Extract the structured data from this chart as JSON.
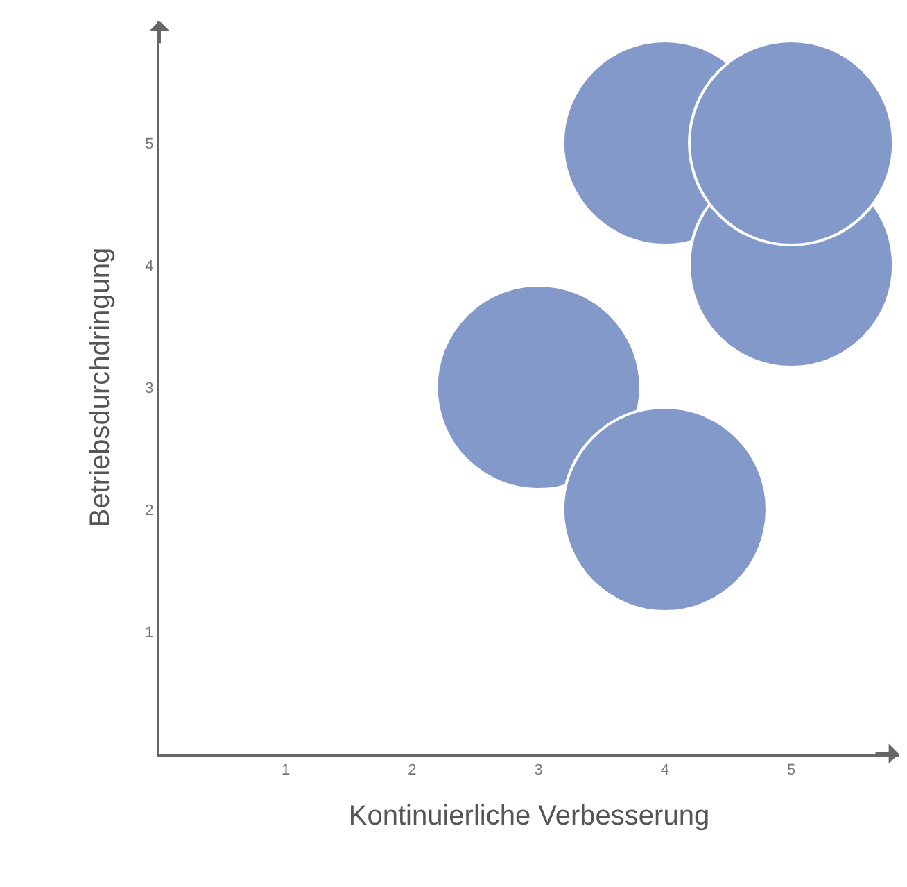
{
  "chart_data": {
    "type": "bubble",
    "xlabel": "Kontinuierliche Verbesserung",
    "ylabel": "Betriebsdurchdringung",
    "xlim": [
      0,
      5.85
    ],
    "ylim": [
      0,
      6
    ],
    "xticks": [
      1,
      2,
      3,
      4,
      5
    ],
    "yticks": [
      1,
      2,
      3,
      4,
      5
    ],
    "grid": false,
    "series": [
      {
        "color": "#8399c9",
        "x": [
          3,
          4,
          4,
          5,
          5
        ],
        "values": [
          3,
          2,
          5,
          4,
          5
        ],
        "sizes": [
          1,
          1,
          1,
          1,
          1
        ]
      }
    ]
  }
}
